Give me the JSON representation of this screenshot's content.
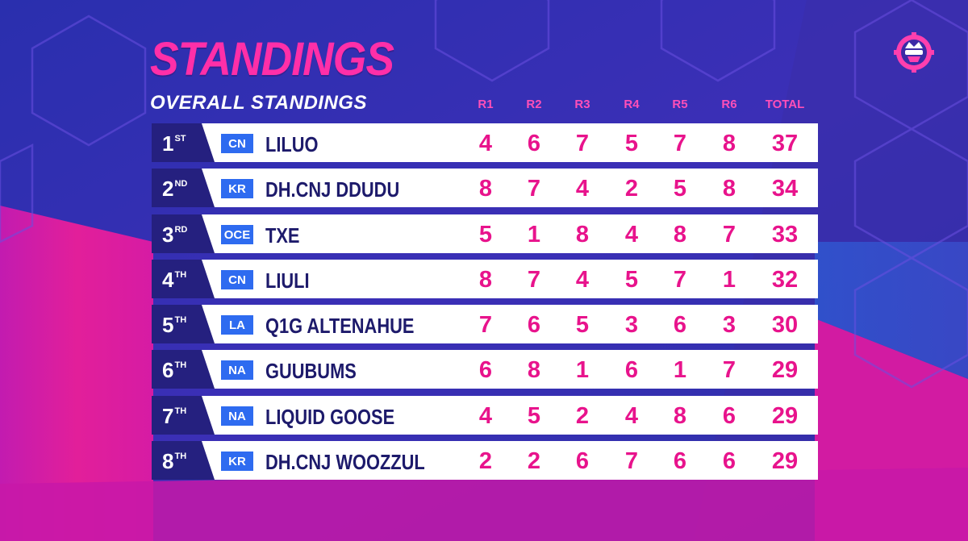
{
  "header": {
    "title": "STANDINGS",
    "subtitle": "OVERALL STANDINGS"
  },
  "columns": [
    "R1",
    "R2",
    "R3",
    "R4",
    "R5",
    "R6",
    "TOTAL"
  ],
  "rows": [
    {
      "rank": "1",
      "suffix": "ST",
      "region": "CN",
      "name": "LILUO",
      "scores": [
        "4",
        "6",
        "7",
        "5",
        "7",
        "8"
      ],
      "total": "37"
    },
    {
      "rank": "2",
      "suffix": "ND",
      "region": "KR",
      "name": "DH.CNJ DDUDU",
      "scores": [
        "8",
        "7",
        "4",
        "2",
        "5",
        "8"
      ],
      "total": "34"
    },
    {
      "rank": "3",
      "suffix": "RD",
      "region": "OCE",
      "name": "TXE",
      "scores": [
        "5",
        "1",
        "8",
        "4",
        "8",
        "7"
      ],
      "total": "33"
    },
    {
      "rank": "4",
      "suffix": "TH",
      "region": "CN",
      "name": "LIULI",
      "scores": [
        "8",
        "7",
        "4",
        "5",
        "7",
        "1"
      ],
      "total": "32"
    },
    {
      "rank": "5",
      "suffix": "TH",
      "region": "LA",
      "name": "Q1G ALTENAHUE",
      "scores": [
        "7",
        "6",
        "5",
        "3",
        "6",
        "3"
      ],
      "total": "30"
    },
    {
      "rank": "6",
      "suffix": "TH",
      "region": "NA",
      "name": "GUUBUMS",
      "scores": [
        "6",
        "8",
        "1",
        "6",
        "1",
        "7"
      ],
      "total": "29"
    },
    {
      "rank": "7",
      "suffix": "TH",
      "region": "NA",
      "name": "LIQUID GOOSE",
      "scores": [
        "4",
        "5",
        "2",
        "4",
        "8",
        "6"
      ],
      "total": "29"
    },
    {
      "rank": "8",
      "suffix": "TH",
      "region": "KR",
      "name": "DH.CNJ WOOZZUL",
      "scores": [
        "2",
        "2",
        "6",
        "7",
        "6",
        "6"
      ],
      "total": "29"
    }
  ],
  "icons": {
    "logo": "masked-mascot-gear-icon"
  },
  "colors": {
    "background": "#2b2fa8",
    "accent_pink": "#ff2fa8",
    "score_pink": "#e8138c",
    "rank_navy": "#25207f",
    "region_blue": "#2e6bf0",
    "name_navy": "#1d1a6b"
  }
}
